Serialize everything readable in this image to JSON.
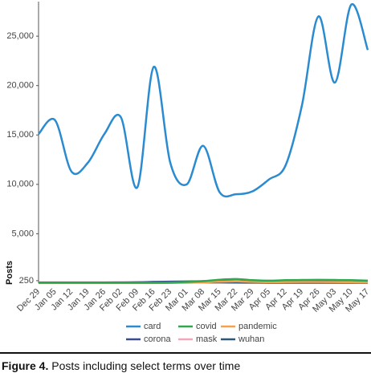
{
  "chart_data": {
    "type": "line",
    "y_label": "Posts",
    "categories": [
      "Dec 29",
      "Jan 05",
      "Jan 12",
      "Jan 19",
      "Jan 26",
      "Feb 02",
      "Feb 09",
      "Feb 16",
      "Feb 23",
      "Mar 01",
      "Mar 08",
      "Mar 15",
      "Mar 22",
      "Mar 29",
      "Apr 05",
      "Apr 12",
      "Apr 19",
      "Apr 26",
      "May 03",
      "May 10",
      "May 17"
    ],
    "series": [
      {
        "name": "card",
        "color": "#2a8bd0",
        "values": [
          15100,
          16500,
          11300,
          12200,
          15100,
          16800,
          9700,
          21900,
          12200,
          10000,
          13900,
          9200,
          9000,
          9300,
          10500,
          11900,
          18000,
          27000,
          20300,
          28200,
          23600
        ]
      },
      {
        "name": "covid",
        "color": "#2fa84f",
        "values": [
          40,
          40,
          40,
          40,
          40,
          40,
          40,
          40,
          60,
          120,
          200,
          350,
          420,
          300,
          250,
          300,
          320,
          330,
          320,
          300,
          250
        ]
      },
      {
        "name": "pandemic",
        "color": "#f5a04a",
        "values": [
          10,
          10,
          10,
          10,
          10,
          10,
          10,
          10,
          20,
          40,
          80,
          150,
          180,
          130,
          100,
          110,
          120,
          120,
          110,
          100,
          90
        ]
      },
      {
        "name": "corona",
        "color": "#3b4c8c",
        "values": [
          60,
          60,
          60,
          60,
          60,
          70,
          80,
          120,
          150,
          170,
          200,
          220,
          200,
          160,
          130,
          130,
          130,
          140,
          130,
          120,
          110
        ]
      },
      {
        "name": "mask",
        "color": "#f2a7bb",
        "values": [
          80,
          80,
          80,
          80,
          80,
          80,
          80,
          90,
          100,
          110,
          130,
          160,
          180,
          170,
          160,
          170,
          180,
          180,
          170,
          160,
          150
        ]
      },
      {
        "name": "wuhan",
        "color": "#2e5878",
        "values": [
          20,
          20,
          20,
          20,
          30,
          60,
          90,
          120,
          110,
          90,
          80,
          70,
          60,
          50,
          40,
          40,
          40,
          40,
          40,
          40,
          40
        ]
      }
    ],
    "ylim": [
      0,
      28500
    ],
    "yticks": [
      250,
      {
        "value": 5000,
        "label": "5,000"
      },
      {
        "value": 10000,
        "label": "10,000"
      },
      {
        "value": 15000,
        "label": "15,000"
      },
      {
        "value": 20000,
        "label": "20,000"
      },
      {
        "value": 25000,
        "label": "25,000"
      }
    ]
  },
  "caption": {
    "label": "Figure 4.",
    "text": "Posts including select terms over time"
  }
}
